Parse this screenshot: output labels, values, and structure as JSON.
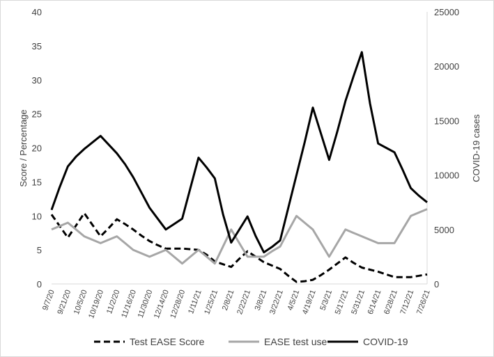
{
  "chart_data": {
    "type": "line",
    "title": "",
    "xlabel": "",
    "ylabel": "Score / Percentage",
    "y2label": "COVID-19 cases",
    "ylim": [
      0,
      40
    ],
    "y2lim": [
      0,
      25000
    ],
    "yticks": [
      "0",
      "5",
      "10",
      "15",
      "20",
      "25",
      "30",
      "35",
      "40"
    ],
    "y2ticks": [
      "0",
      "5000",
      "10000",
      "15000",
      "20000",
      "25000"
    ],
    "categories": [
      "9/7/20",
      "9/21/20",
      "10/5/20",
      "10/19/20",
      "11/2/20",
      "11/16/20",
      "11/30/20",
      "12/14/20",
      "12/28/20",
      "1/11/21",
      "1/25/21",
      "2/8/21",
      "2/22/21",
      "3/8/21",
      "3/22/21",
      "4/5/21",
      "4/19/21",
      "5/3/21",
      "5/17/21",
      "5/31/21",
      "6/14/21",
      "6/28/21",
      "7/12/21",
      "7/26/21"
    ],
    "x": [
      "9/7/20",
      "9/14/20",
      "9/21/20",
      "9/28/20",
      "10/5/20",
      "10/12/20",
      "10/19/20",
      "10/26/20",
      "11/2/20",
      "11/9/20",
      "11/16/20",
      "11/23/20",
      "11/30/20",
      "12/7/20",
      "12/14/20",
      "12/21/20",
      "12/28/20",
      "1/4/21",
      "1/11/21",
      "1/18/21",
      "1/25/21",
      "2/1/21",
      "2/8/21",
      "2/15/21",
      "2/22/21",
      "3/1/21",
      "3/8/21",
      "3/15/21",
      "3/22/21",
      "3/29/21",
      "4/5/21",
      "4/12/21",
      "4/19/21",
      "4/26/21",
      "5/3/21",
      "5/10/21",
      "5/17/21",
      "5/24/21",
      "5/31/21",
      "6/7/21",
      "6/14/21",
      "6/21/21",
      "6/28/21",
      "7/5/21",
      "7/12/21",
      "7/19/21",
      "7/26/21"
    ],
    "series": [
      {
        "name": "Test EASE Score",
        "axis": "left",
        "color": "#000000",
        "dash": "dashed",
        "values": [
          10.2,
          8.5,
          6.8,
          8.6,
          10.4,
          8.7,
          7.0,
          8.2,
          9.5,
          8.8,
          8.0,
          7.1,
          6.3,
          5.7,
          5.2,
          5.2,
          5.2,
          5.1,
          5.0,
          4.3,
          3.3,
          2.9,
          2.5,
          3.7,
          4.8,
          4.0,
          3.2,
          2.7,
          2.2,
          1.2,
          0.3,
          0.4,
          0.6,
          1.3,
          2.1,
          3.0,
          3.9,
          3.1,
          2.4,
          2.1,
          1.8,
          1.4,
          1.0,
          1.0,
          1.0,
          1.2,
          1.4
        ]
      },
      {
        "name": "EASE test use",
        "axis": "left",
        "color": "#a6a6a6",
        "dash": "solid",
        "values": [
          8.0,
          8.5,
          9.0,
          8.0,
          7.0,
          6.5,
          6.0,
          6.5,
          7.0,
          6.0,
          5.0,
          4.5,
          4.0,
          4.5,
          5.0,
          4.0,
          3.0,
          4.0,
          5.0,
          4.0,
          3.0,
          5.5,
          8.0,
          6.0,
          4.0,
          4.0,
          4.0,
          4.8,
          5.5,
          7.8,
          10.0,
          9.0,
          8.0,
          6.0,
          4.0,
          6.0,
          8.0,
          7.5,
          7.0,
          6.5,
          6.0,
          6.0,
          6.0,
          8.0,
          10.0,
          10.5,
          11.0
        ]
      },
      {
        "name": "COVID-19",
        "axis": "right",
        "color": "#000000",
        "dash": "solid",
        "values": [
          6800,
          8900,
          10800,
          11700,
          12400,
          13000,
          13600,
          12800,
          12000,
          11000,
          9800,
          8400,
          7000,
          6000,
          5000,
          5500,
          6000,
          8800,
          11600,
          10700,
          9700,
          6400,
          3800,
          5000,
          6200,
          4400,
          2900,
          3400,
          4000,
          7000,
          10000,
          13000,
          16200,
          13800,
          11400,
          14000,
          16800,
          19100,
          21300,
          16600,
          12900,
          12500,
          12100,
          10500,
          8800,
          8100,
          7500
        ]
      }
    ],
    "legend": {
      "position": "bottom",
      "entries": [
        "Test EASE Score",
        "EASE test use",
        "COVID-19"
      ]
    },
    "grid": false
  }
}
